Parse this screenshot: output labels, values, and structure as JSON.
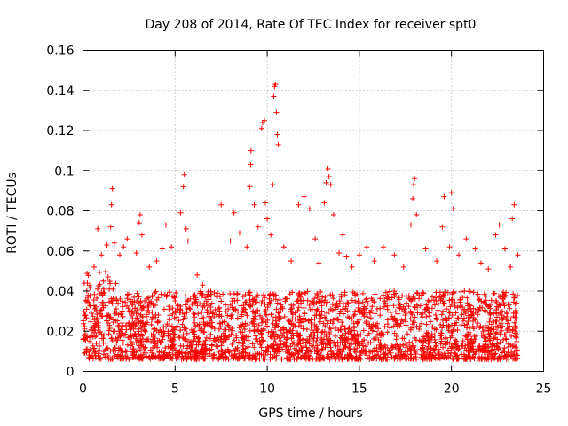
{
  "chart_data": {
    "type": "scatter",
    "title": "Day 208 of 2014, Rate Of TEC Index for receiver spt0",
    "xlabel": "GPS time / hours",
    "ylabel": "ROTI / TECUs",
    "xlim": [
      0,
      25
    ],
    "ylim": [
      0,
      0.16
    ],
    "x_ticks": [
      "0",
      "5",
      "10",
      "15",
      "20",
      "25"
    ],
    "y_ticks": [
      "0",
      "0.02",
      "0.04",
      "0.06",
      "0.08",
      "0.1",
      "0.12",
      "0.14",
      "0.16"
    ],
    "grid": true,
    "marker": "+",
    "color": "#ff0000",
    "series": [
      {
        "name": "ROTI",
        "points": [
          [
            0.1,
            0.028
          ],
          [
            0.2,
            0.031
          ],
          [
            0.6,
            0.052
          ],
          [
            0.8,
            0.071
          ],
          [
            1.0,
            0.058
          ],
          [
            1.1,
            0.045
          ],
          [
            1.3,
            0.063
          ],
          [
            1.5,
            0.072
          ],
          [
            1.55,
            0.083
          ],
          [
            1.6,
            0.091
          ],
          [
            1.7,
            0.064
          ],
          [
            2.0,
            0.058
          ],
          [
            2.2,
            0.062
          ],
          [
            2.4,
            0.066
          ],
          [
            2.9,
            0.059
          ],
          [
            3.05,
            0.074
          ],
          [
            3.1,
            0.078
          ],
          [
            3.2,
            0.068
          ],
          [
            3.6,
            0.052
          ],
          [
            4.0,
            0.055
          ],
          [
            4.3,
            0.061
          ],
          [
            4.5,
            0.073
          ],
          [
            4.8,
            0.062
          ],
          [
            5.3,
            0.079
          ],
          [
            5.45,
            0.092
          ],
          [
            5.5,
            0.098
          ],
          [
            5.6,
            0.071
          ],
          [
            5.7,
            0.065
          ],
          [
            6.2,
            0.048
          ],
          [
            6.5,
            0.043
          ],
          [
            7.0,
            0.034
          ],
          [
            7.3,
            0.039
          ],
          [
            7.5,
            0.083
          ],
          [
            8.0,
            0.065
          ],
          [
            8.2,
            0.079
          ],
          [
            8.5,
            0.069
          ],
          [
            8.9,
            0.062
          ],
          [
            9.05,
            0.092
          ],
          [
            9.1,
            0.103
          ],
          [
            9.12,
            0.11
          ],
          [
            9.3,
            0.083
          ],
          [
            9.5,
            0.072
          ],
          [
            9.7,
            0.121
          ],
          [
            9.75,
            0.124
          ],
          [
            9.85,
            0.125
          ],
          [
            9.9,
            0.084
          ],
          [
            10.0,
            0.076
          ],
          [
            10.2,
            0.068
          ],
          [
            10.3,
            0.093
          ],
          [
            10.35,
            0.137
          ],
          [
            10.4,
            0.142
          ],
          [
            10.45,
            0.143
          ],
          [
            10.5,
            0.129
          ],
          [
            10.55,
            0.118
          ],
          [
            10.6,
            0.113
          ],
          [
            10.9,
            0.062
          ],
          [
            11.3,
            0.055
          ],
          [
            11.7,
            0.083
          ],
          [
            12.0,
            0.087
          ],
          [
            12.3,
            0.081
          ],
          [
            12.6,
            0.066
          ],
          [
            12.8,
            0.054
          ],
          [
            13.1,
            0.084
          ],
          [
            13.2,
            0.094
          ],
          [
            13.3,
            0.101
          ],
          [
            13.35,
            0.097
          ],
          [
            13.45,
            0.093
          ],
          [
            13.6,
            0.078
          ],
          [
            13.9,
            0.059
          ],
          [
            14.1,
            0.068
          ],
          [
            14.3,
            0.057
          ],
          [
            14.6,
            0.052
          ],
          [
            15.0,
            0.058
          ],
          [
            15.4,
            0.062
          ],
          [
            15.8,
            0.055
          ],
          [
            16.3,
            0.062
          ],
          [
            16.9,
            0.058
          ],
          [
            17.4,
            0.052
          ],
          [
            17.8,
            0.073
          ],
          [
            17.9,
            0.086
          ],
          [
            17.95,
            0.093
          ],
          [
            18.0,
            0.096
          ],
          [
            18.1,
            0.078
          ],
          [
            18.6,
            0.061
          ],
          [
            19.2,
            0.055
          ],
          [
            19.5,
            0.072
          ],
          [
            19.6,
            0.087
          ],
          [
            19.9,
            0.062
          ],
          [
            20.0,
            0.089
          ],
          [
            20.1,
            0.081
          ],
          [
            20.4,
            0.058
          ],
          [
            20.8,
            0.066
          ],
          [
            21.3,
            0.061
          ],
          [
            21.6,
            0.054
          ],
          [
            22.0,
            0.051
          ],
          [
            22.4,
            0.068
          ],
          [
            22.6,
            0.073
          ],
          [
            22.9,
            0.061
          ],
          [
            23.2,
            0.052
          ],
          [
            23.3,
            0.076
          ],
          [
            23.4,
            0.083
          ],
          [
            23.6,
            0.058
          ]
        ]
      }
    ],
    "note": "Background density: several thousand points between 0.005 and ~0.04 TECU across 0–23.6 h."
  }
}
